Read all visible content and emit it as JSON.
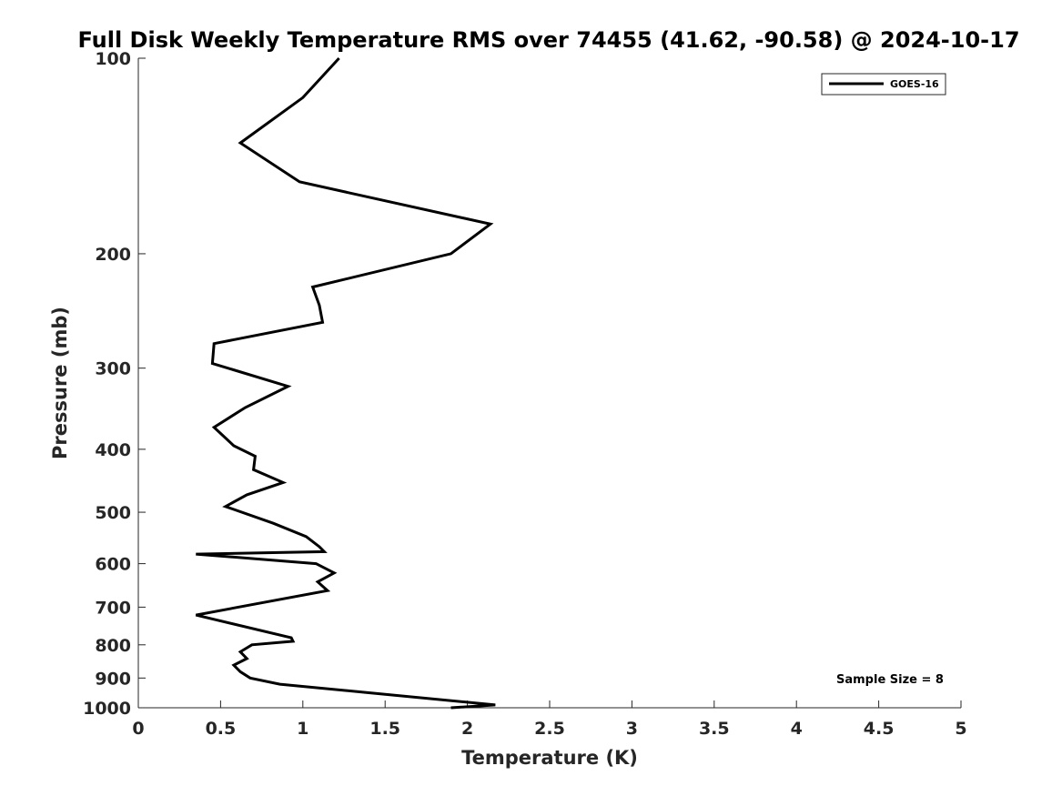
{
  "chart_data": {
    "type": "line",
    "title": "Full Disk Weekly Temperature RMS over 74455 (41.62, -90.58) @ 2024-10-17",
    "xlabel": "Temperature (K)",
    "ylabel": "Pressure (mb)",
    "xlim": [
      0,
      5
    ],
    "ylim": [
      1000,
      100
    ],
    "yscale": "log",
    "grid": false,
    "legend_position": "top-right",
    "x_ticks": [
      0,
      0.5,
      1,
      1.5,
      2,
      2.5,
      3,
      3.5,
      4,
      4.5,
      5
    ],
    "x_tick_labels": [
      "0",
      "0.5",
      "1",
      "1.5",
      "2",
      "2.5",
      "3",
      "3.5",
      "4",
      "4.5",
      "5"
    ],
    "y_ticks": [
      100,
      200,
      300,
      400,
      500,
      600,
      700,
      800,
      900,
      1000
    ],
    "y_tick_labels": [
      "100",
      "200",
      "300",
      "400",
      "500",
      "600",
      "700",
      "800",
      "900",
      "1000"
    ],
    "series": [
      {
        "name": "GOES-16",
        "color": "#000000",
        "x": [
          1.22,
          1.0,
          0.62,
          0.98,
          2.14,
          1.9,
          1.06,
          1.1,
          1.12,
          0.46,
          0.45,
          0.91,
          0.65,
          0.46,
          0.58,
          0.71,
          0.7,
          0.88,
          0.66,
          0.53,
          0.82,
          1.02,
          1.1,
          1.13,
          0.35,
          1.08,
          1.19,
          1.09,
          1.15,
          0.35,
          0.93,
          0.94,
          0.69,
          0.62,
          0.66,
          0.58,
          0.62,
          0.68,
          0.86,
          2.17,
          1.9
        ],
        "y": [
          100,
          115,
          135,
          155,
          180,
          200,
          225,
          240,
          255,
          275,
          295,
          320,
          345,
          370,
          395,
          410,
          430,
          450,
          470,
          490,
          520,
          545,
          565,
          575,
          580,
          600,
          620,
          640,
          660,
          720,
          780,
          790,
          800,
          820,
          840,
          860,
          880,
          900,
          920,
          990,
          1000
        ]
      }
    ],
    "annotations": [
      "Sample Size = 8"
    ]
  }
}
